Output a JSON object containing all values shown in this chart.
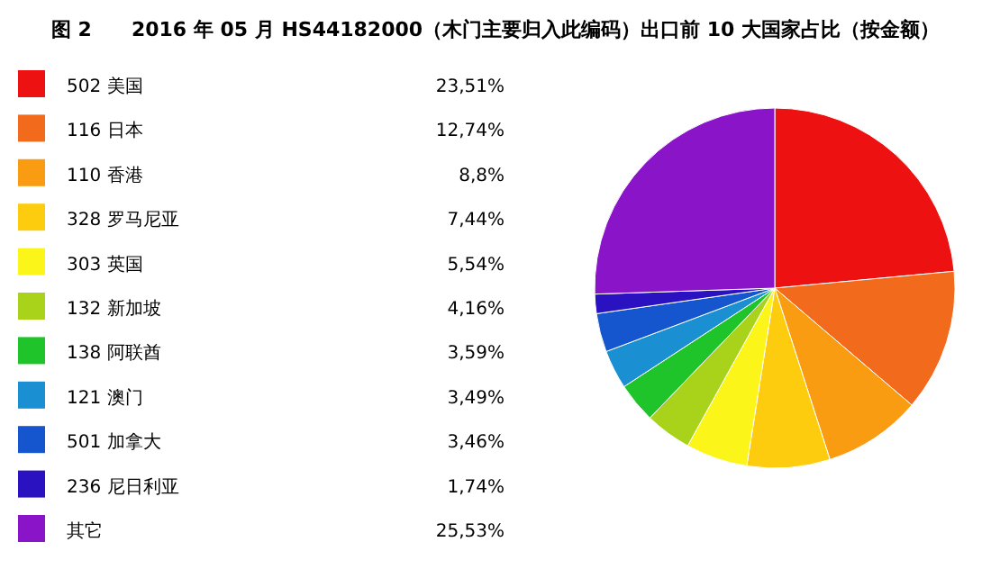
{
  "chart_data": {
    "type": "pie",
    "title": "图 2　　2016 年 05 月 HS44182000（木门主要归入此编码）出口前 10 大国家占比（按金额）",
    "categories": [
      "502 美国",
      "116 日本",
      "110 香港",
      "328 罗马尼亚",
      "303 英国",
      "132 新加坡",
      "138 阿联酋",
      "121 澳门",
      "501 加拿大",
      "236 尼日利亚",
      "其它"
    ],
    "values": [
      23.51,
      12.74,
      8.8,
      7.44,
      5.54,
      4.16,
      3.59,
      3.49,
      3.46,
      1.74,
      25.53
    ],
    "value_labels": [
      "23,51%",
      "12,74%",
      "8,8%",
      "7,44%",
      "5,54%",
      "4,16%",
      "3,59%",
      "3,49%",
      "3,46%",
      "1,74%",
      "25,53%"
    ],
    "colors": [
      "#ee1111",
      "#f26a1b",
      "#f99c12",
      "#fdcc0f",
      "#fbf51a",
      "#a9d21a",
      "#1ec42a",
      "#1a8fd2",
      "#1556cf",
      "#2a12c0",
      "#8a14c8"
    ],
    "legend": "left"
  }
}
